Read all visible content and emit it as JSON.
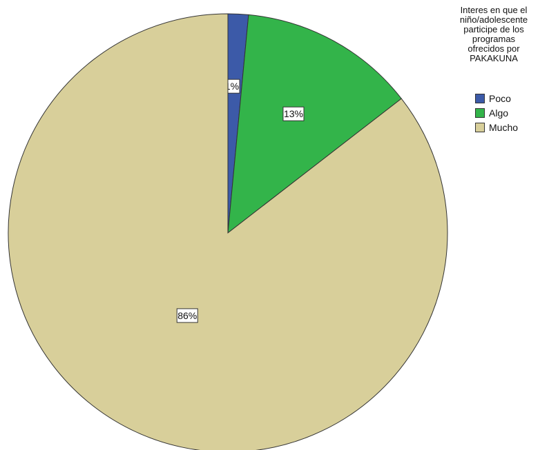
{
  "chart_data": {
    "type": "pie",
    "legend_title": "Interes en que el\nniño/adolescente\nparticipe de los\nprogramas\nofrecidos por\nPAKAKUNA",
    "legend_position": "right",
    "slices": [
      {
        "label": "Poco",
        "value": 1.5,
        "display": "1%",
        "color": "#3c5aa8"
      },
      {
        "label": "Algo",
        "value": 13,
        "display": "13%",
        "color": "#33b44a"
      },
      {
        "label": "Mucho",
        "value": 85.5,
        "display": "86%",
        "color": "#d8cf9a"
      }
    ]
  }
}
